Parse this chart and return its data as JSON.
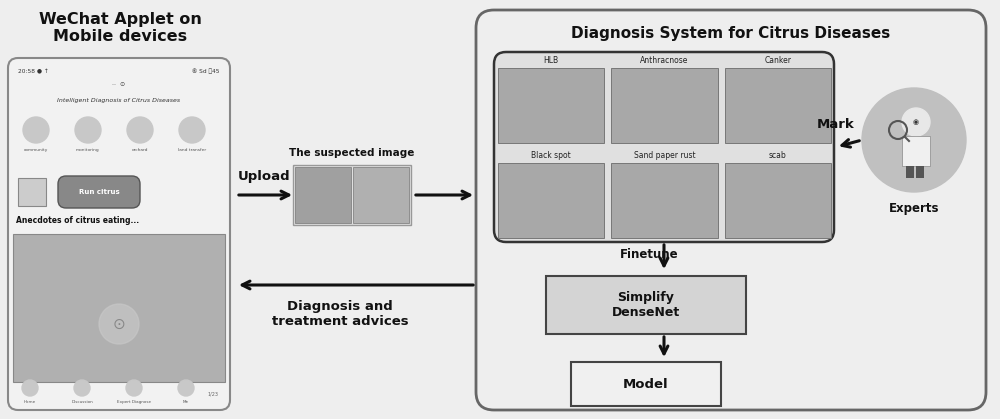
{
  "bg_color": "#eeeeee",
  "title_left": "WeChat Applet on\nMobile devices",
  "title_right": "Diagnosis System for Citrus Diseases",
  "upload_label": "Upload",
  "suspected_label": "The suspected image",
  "diagnosis_label": "Diagnosis and\ntreatment advices",
  "finetune_label": "Finetune",
  "simplify_label": "Simplify\nDenseNet",
  "model_label": "Model",
  "mark_label": "Mark",
  "experts_label": "Experts",
  "disease_labels": [
    "HLB",
    "Anthracnose",
    "Canker",
    "Black spot",
    "Sand paper rust",
    "scab"
  ],
  "arrow_color": "#111111",
  "text_color": "#111111"
}
